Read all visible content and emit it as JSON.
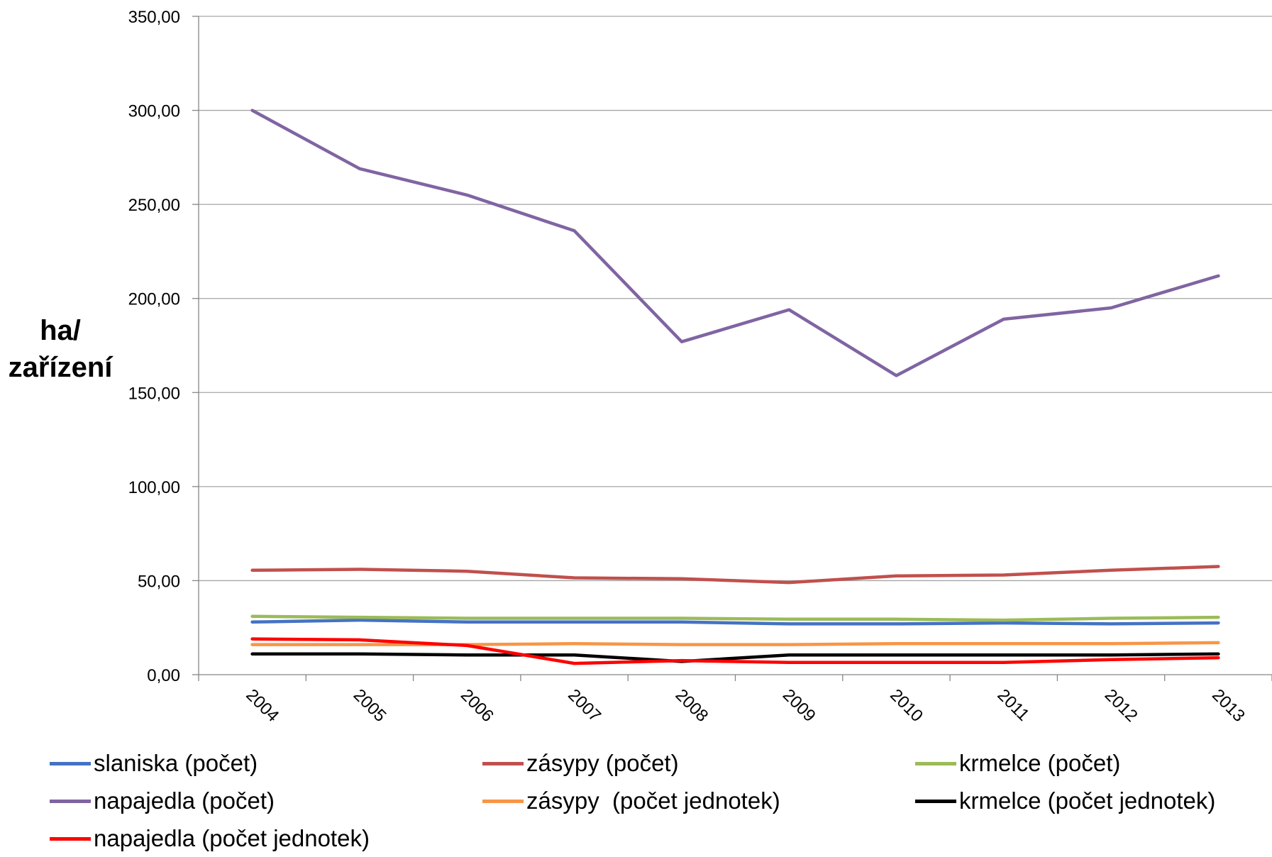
{
  "chart_data": {
    "type": "line",
    "ylabel_line1": "ha/",
    "ylabel_line2": "zařízení",
    "ylim": [
      0,
      350
    ],
    "yticks": [
      "0,00",
      "50,00",
      "100,00",
      "150,00",
      "200,00",
      "250,00",
      "300,00",
      "350,00"
    ],
    "categories": [
      "2004",
      "2005",
      "2006",
      "2007",
      "2008",
      "2009",
      "2010",
      "2011",
      "2012",
      "2013"
    ],
    "grid": true,
    "legend_position": "bottom",
    "series": [
      {
        "name": "slaniska (počet)",
        "color": "#4472C4",
        "values": [
          28,
          29,
          28,
          28,
          28,
          27,
          27,
          27.5,
          27,
          27.5
        ]
      },
      {
        "name": "zásypy (počet)",
        "color": "#C0504D",
        "values": [
          55.5,
          56,
          55,
          51.5,
          51,
          49,
          52.5,
          53,
          55.5,
          57.5
        ]
      },
      {
        "name": "krmelce (počet)",
        "color": "#9BBB59",
        "values": [
          31,
          30.5,
          30,
          30,
          30,
          29.5,
          29.5,
          29,
          30,
          30.5
        ]
      },
      {
        "name": "napajedla (počet)",
        "color": "#8064A2",
        "values": [
          300,
          269,
          255,
          236,
          177,
          194,
          159,
          189,
          195,
          212
        ]
      },
      {
        "name": "zásypy  (počet jednotek)",
        "color": "#F79646",
        "values": [
          16,
          16,
          16,
          16.5,
          16,
          16,
          16.5,
          16.5,
          16.5,
          17
        ]
      },
      {
        "name": "krmelce (počet jednotek)",
        "color": "#000000",
        "values": [
          11,
          11,
          10.5,
          10.5,
          7,
          10.5,
          10.5,
          10.5,
          10.5,
          11
        ]
      },
      {
        "name": "napajedla (počet jednotek)",
        "color": "#FF0000",
        "values": [
          19,
          18.5,
          15.5,
          6,
          7.5,
          6.5,
          6.5,
          6.5,
          8,
          9
        ]
      }
    ]
  }
}
